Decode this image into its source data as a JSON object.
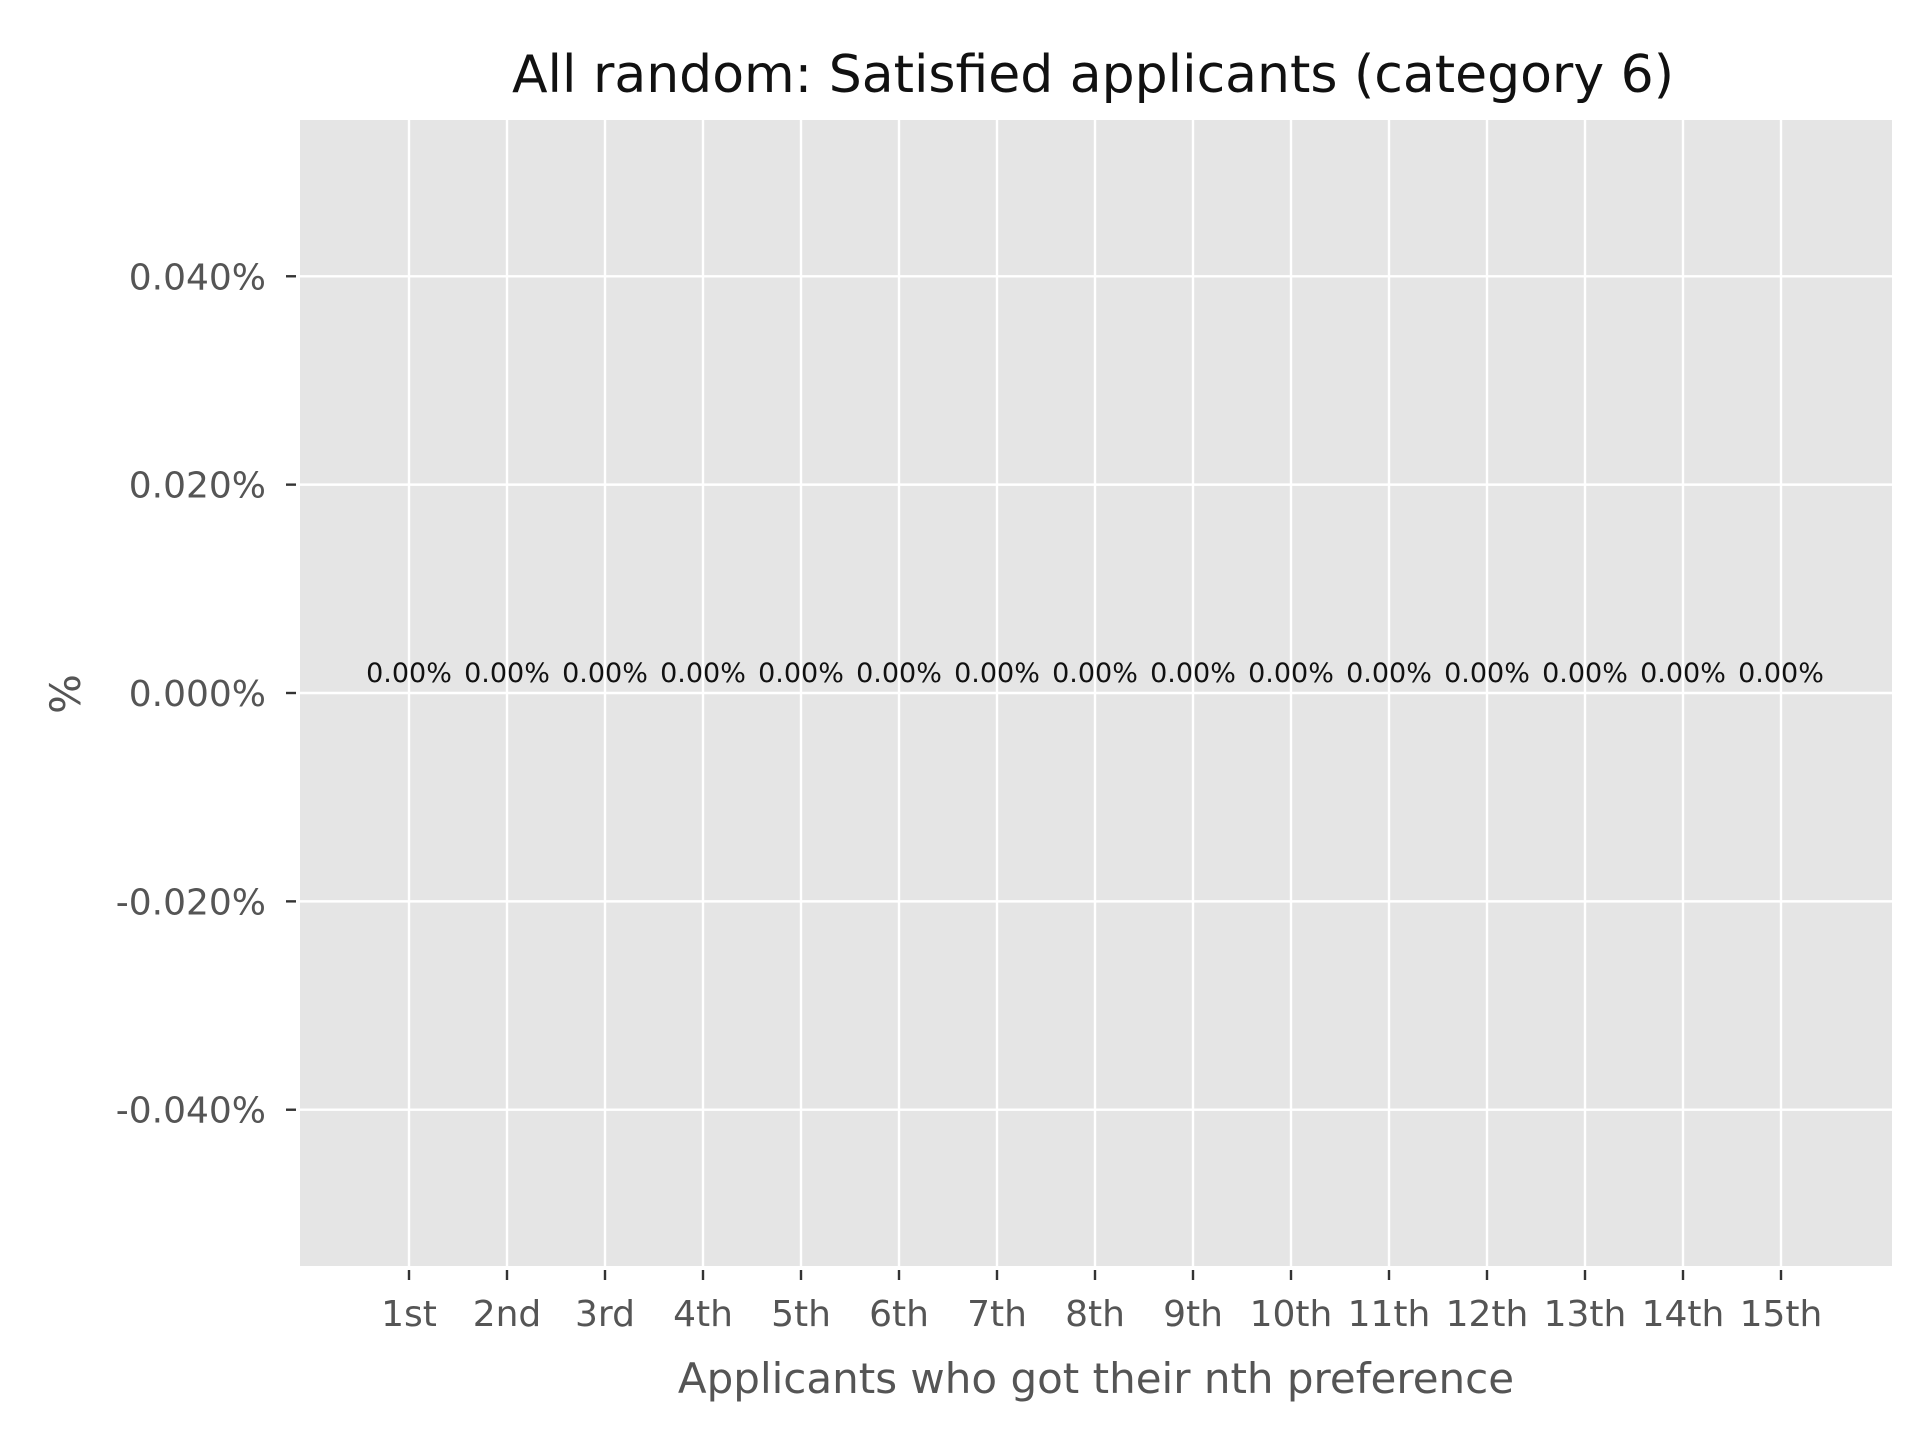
{
  "chart_data": {
    "type": "bar",
    "title": "All random: Satisfied applicants (category 6)",
    "xlabel": "Applicants who got their nth preference",
    "ylabel": "%",
    "categories": [
      "1st",
      "2nd",
      "3rd",
      "4th",
      "5th",
      "6th",
      "7th",
      "8th",
      "9th",
      "10th",
      "11th",
      "12th",
      "13th",
      "14th",
      "15th"
    ],
    "values": [
      0,
      0,
      0,
      0,
      0,
      0,
      0,
      0,
      0,
      0,
      0,
      0,
      0,
      0,
      0
    ],
    "data_labels": [
      "0.00%",
      "0.00%",
      "0.00%",
      "0.00%",
      "0.00%",
      "0.00%",
      "0.00%",
      "0.00%",
      "0.00%",
      "0.00%",
      "0.00%",
      "0.00%",
      "0.00%",
      "0.00%",
      "0.00%"
    ],
    "ylim": [
      -0.055,
      0.055
    ],
    "y_ticks": [
      0.04,
      0.02,
      0.0,
      -0.02,
      -0.04
    ],
    "y_tick_labels": [
      "0.040%",
      "0.020%",
      "0.000%",
      "-0.020%",
      "-0.040%"
    ],
    "grid": true,
    "colors": {
      "panel_background": "#e5e5e5",
      "grid_line": "#ffffff",
      "tick_mark": "#333333",
      "tick_label": "#555555",
      "title": "#111111",
      "data_label": "#111111"
    }
  }
}
